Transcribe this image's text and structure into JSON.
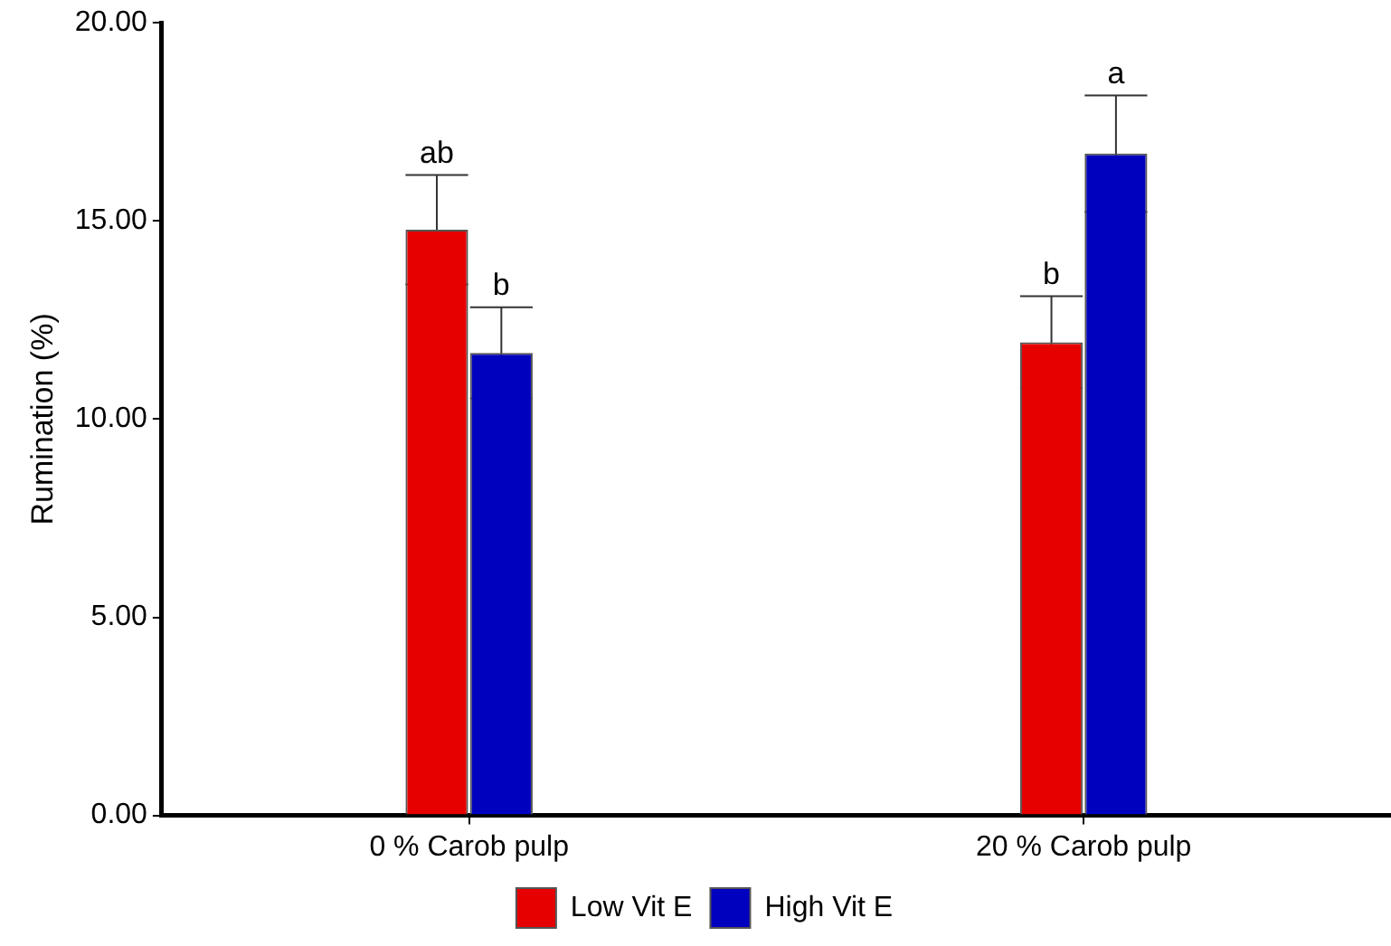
{
  "chart_data": {
    "type": "bar",
    "ylabel": "Rumination (%)",
    "categories": [
      "0 % Carob pulp",
      "20 % Carob pulp"
    ],
    "series": [
      {
        "name": "Low Vit E",
        "color": "#e60000",
        "values": [
          14.78,
          11.94
        ],
        "errors": [
          1.38,
          1.16
        ]
      },
      {
        "name": "High Vit E",
        "color": "#0000bf",
        "values": [
          11.67,
          16.7
        ],
        "errors": [
          1.15,
          1.47
        ]
      }
    ],
    "ylim": [
      0,
      20
    ],
    "yticks": [
      {
        "value": 0,
        "label": "0.00"
      },
      {
        "value": 5,
        "label": "5.00"
      },
      {
        "value": 10,
        "label": "10.00"
      },
      {
        "value": 15,
        "label": "15.00"
      },
      {
        "value": 20,
        "label": "20.00"
      }
    ],
    "grid": false,
    "legend": "bottom",
    "annotations": [
      {
        "text": "ab",
        "x": "0 % Carob pulp",
        "y": 16.16
      },
      {
        "text": "b",
        "x": "0 % Carob pulp",
        "y": 12.82
      },
      {
        "text": "b",
        "x": "20 % Carob pulp",
        "y": 13.1
      },
      {
        "text": "a",
        "x": "20 % Carob pulp",
        "y": 18.17
      }
    ]
  }
}
